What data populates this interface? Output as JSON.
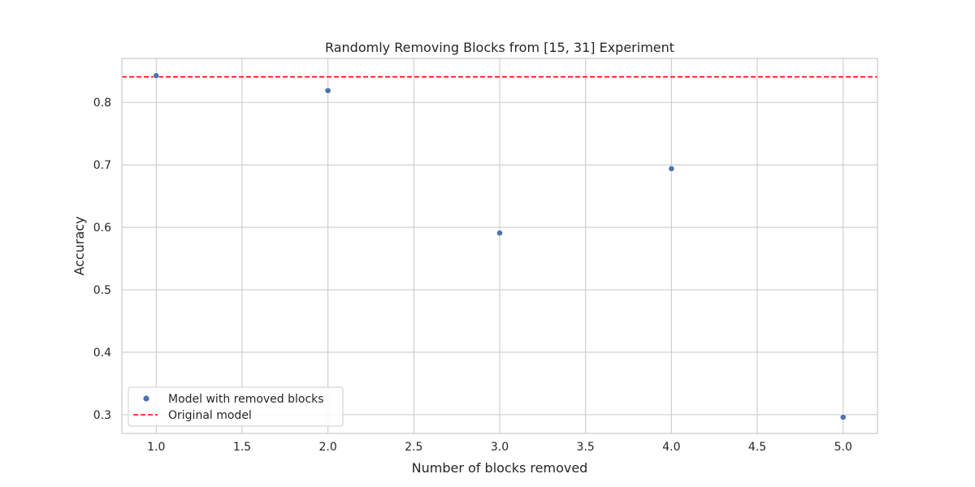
{
  "chart_data": {
    "type": "scatter",
    "title": "Randomly Removing Blocks from [15, 31] Experiment",
    "xlabel": "Number of blocks removed",
    "ylabel": "Accuracy",
    "xlim": [
      0.8,
      5.2
    ],
    "ylim": [
      0.27,
      0.8705
    ],
    "xticks": [
      1.0,
      1.5,
      2.0,
      2.5,
      3.0,
      3.5,
      4.0,
      4.5,
      5.0
    ],
    "xtick_labels": [
      "1.0",
      "1.5",
      "2.0",
      "2.5",
      "3.0",
      "3.5",
      "4.0",
      "4.5",
      "5.0"
    ],
    "yticks": [
      0.3,
      0.4,
      0.5,
      0.6,
      0.7,
      0.8
    ],
    "ytick_labels": [
      "0.3",
      "0.4",
      "0.5",
      "0.6",
      "0.7",
      "0.8"
    ],
    "grid": true,
    "legend_position": "lower-left",
    "series": [
      {
        "name": "Model with removed blocks",
        "kind": "scatter",
        "color": "#4c72b0",
        "x": [
          1,
          2,
          3,
          4,
          5
        ],
        "y": [
          0.843,
          0.819,
          0.591,
          0.694,
          0.296
        ]
      }
    ],
    "reference_lines": [
      {
        "name": "Original model",
        "kind": "hline",
        "style": "dashed",
        "color": "#ff0000",
        "y": 0.841
      }
    ]
  }
}
